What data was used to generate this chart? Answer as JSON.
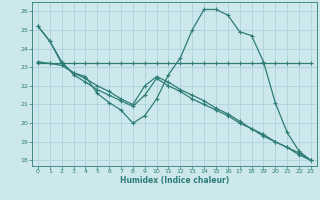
{
  "xlabel": "Humidex (Indice chaleur)",
  "bg_color": "#cce8ed",
  "line_color": "#2e7d73",
  "grid_color": "#aacdd5",
  "xlim": [
    -0.5,
    23.5
  ],
  "ylim": [
    17.7,
    26.5
  ],
  "yticks": [
    18,
    19,
    20,
    21,
    22,
    23,
    24,
    25,
    26
  ],
  "xticks": [
    0,
    1,
    2,
    3,
    4,
    5,
    6,
    7,
    8,
    9,
    10,
    11,
    12,
    13,
    14,
    15,
    16,
    17,
    18,
    19,
    20,
    21,
    22,
    23
  ],
  "line1_x": [
    0,
    1,
    2,
    3,
    4,
    5,
    6,
    7,
    8,
    9,
    10,
    11,
    12,
    13,
    14,
    15,
    16,
    17,
    18,
    19,
    20,
    21,
    22,
    23
  ],
  "line1_y": [
    25.2,
    24.4,
    23.2,
    22.7,
    22.5,
    21.6,
    21.1,
    20.7,
    20.0,
    20.4,
    21.3,
    22.6,
    23.5,
    25.0,
    26.1,
    26.1,
    25.8,
    24.9,
    24.7,
    23.3,
    21.1,
    19.5,
    18.5,
    18.0
  ],
  "line2_x": [
    0,
    1,
    2,
    3,
    4,
    5,
    6,
    7,
    8,
    9,
    10,
    11,
    12,
    13,
    14,
    15,
    16,
    17,
    18,
    19,
    20,
    21,
    22,
    23
  ],
  "line2_y": [
    23.2,
    23.2,
    23.2,
    23.2,
    23.2,
    23.2,
    23.2,
    23.2,
    23.2,
    23.2,
    23.2,
    23.2,
    23.2,
    23.2,
    23.2,
    23.2,
    23.2,
    23.2,
    23.2,
    23.2,
    23.2,
    23.2,
    23.2,
    23.2
  ],
  "line3_x": [
    0,
    1,
    2,
    3,
    4,
    5,
    6,
    7,
    8,
    9,
    10,
    11,
    12,
    13,
    14,
    15,
    16,
    17,
    18,
    19,
    20,
    21,
    22,
    23
  ],
  "line3_y": [
    25.2,
    24.4,
    23.3,
    22.6,
    22.2,
    21.8,
    21.5,
    21.2,
    20.9,
    21.5,
    22.4,
    22.0,
    21.7,
    21.3,
    21.0,
    20.7,
    20.4,
    20.0,
    19.7,
    19.3,
    19.0,
    18.7,
    18.3,
    18.0
  ],
  "line4_x": [
    0,
    1,
    2,
    3,
    4,
    5,
    6,
    7,
    8,
    9,
    10,
    11,
    12,
    13,
    14,
    15,
    16,
    17,
    18,
    19,
    20,
    21,
    22,
    23
  ],
  "line4_y": [
    23.3,
    23.2,
    23.1,
    22.7,
    22.4,
    22.0,
    21.7,
    21.3,
    21.0,
    22.0,
    22.5,
    22.2,
    21.8,
    21.5,
    21.2,
    20.8,
    20.5,
    20.1,
    19.7,
    19.4,
    19.0,
    18.7,
    18.4,
    18.0
  ]
}
